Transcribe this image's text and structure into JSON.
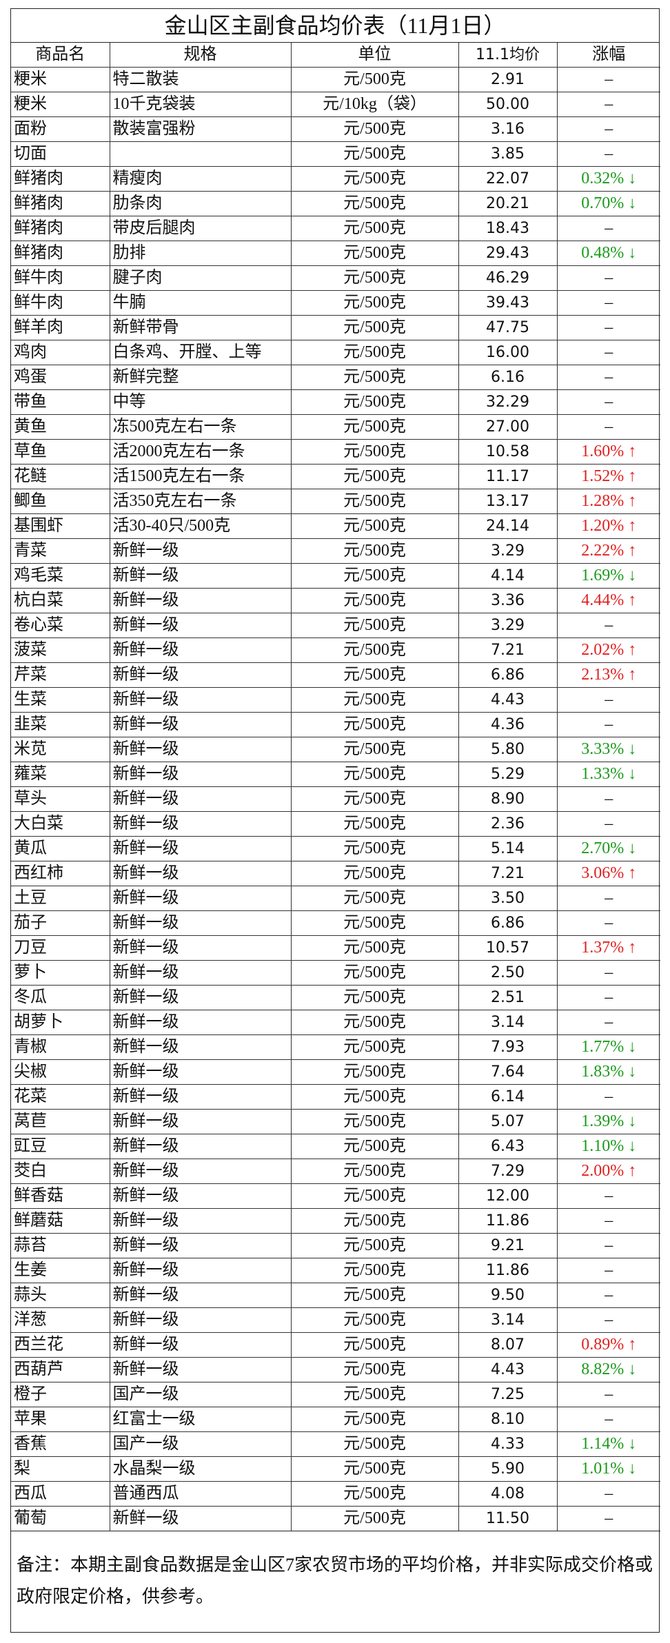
{
  "title": "金山区主副食品均价表（11月1日）",
  "table": {
    "header": [
      "商品名",
      "规格",
      "单位",
      "11.1均价",
      "涨幅"
    ],
    "rows": [
      [
        "粳米",
        "特二散装",
        "元/500克",
        "2.91",
        "–"
      ],
      [
        "粳米",
        "10千克袋装",
        "元/10kg（袋）",
        "50.00",
        "–"
      ],
      [
        "面粉",
        "散装富强粉",
        "元/500克",
        "3.16",
        "–"
      ],
      [
        "切面",
        null,
        "元/500克",
        "3.85",
        "–"
      ],
      [
        "鲜猪肉",
        "精瘦肉",
        "元/500克",
        "22.07",
        "0.32% ↓"
      ],
      [
        "鲜猪肉",
        "肋条肉",
        "元/500克",
        "20.21",
        "0.70% ↓"
      ],
      [
        "鲜猪肉",
        "带皮后腿肉",
        "元/500克",
        "18.43",
        "–"
      ],
      [
        "鲜猪肉",
        "肋排",
        "元/500克",
        "29.43",
        "0.48% ↓"
      ],
      [
        "鲜牛肉",
        "腱子肉",
        "元/500克",
        "46.29",
        "–"
      ],
      [
        "鲜牛肉",
        "牛腩",
        "元/500克",
        "39.43",
        "–"
      ],
      [
        "鲜羊肉",
        "新鲜带骨",
        "元/500克",
        "47.75",
        "–"
      ],
      [
        "鸡肉",
        "白条鸡、开膛、上等",
        "元/500克",
        "16.00",
        "–"
      ],
      [
        "鸡蛋",
        "新鲜完整",
        "元/500克",
        "6.16",
        "–"
      ],
      [
        "带鱼",
        "中等",
        "元/500克",
        "32.29",
        "–"
      ],
      [
        "黄鱼",
        "冻500克左右一条",
        "元/500克",
        "27.00",
        "–"
      ],
      [
        "草鱼",
        "活2000克左右一条",
        "元/500克",
        "10.58",
        "1.60% ↑"
      ],
      [
        "花鲢",
        "活1500克左右一条",
        "元/500克",
        "11.17",
        "1.52% ↑"
      ],
      [
        "鲫鱼",
        "活350克左右一条",
        "元/500克",
        "13.17",
        "1.28% ↑"
      ],
      [
        "基围虾",
        "活30-40只/500克",
        "元/500克",
        "24.14",
        "1.20% ↑"
      ],
      [
        "青菜",
        "新鲜一级",
        "元/500克",
        "3.29",
        "2.22% ↑"
      ],
      [
        "鸡毛菜",
        "新鲜一级",
        "元/500克",
        "4.14",
        "1.69% ↓"
      ],
      [
        "杭白菜",
        "新鲜一级",
        "元/500克",
        "3.36",
        "4.44% ↑"
      ],
      [
        "卷心菜",
        "新鲜一级",
        "元/500克",
        "3.29",
        "–"
      ],
      [
        "菠菜",
        "新鲜一级",
        "元/500克",
        "7.21",
        "2.02% ↑"
      ],
      [
        "芹菜",
        "新鲜一级",
        "元/500克",
        "6.86",
        "2.13% ↑"
      ],
      [
        "生菜",
        "新鲜一级",
        "元/500克",
        "4.43",
        "–"
      ],
      [
        "韭菜",
        "新鲜一级",
        "元/500克",
        "4.36",
        "–"
      ],
      [
        "米苋",
        "新鲜一级",
        "元/500克",
        "5.80",
        "3.33% ↓"
      ],
      [
        "蕹菜",
        "新鲜一级",
        "元/500克",
        "5.29",
        "1.33% ↓"
      ],
      [
        "草头",
        "新鲜一级",
        "元/500克",
        "8.90",
        "–"
      ],
      [
        "大白菜",
        "新鲜一级",
        "元/500克",
        "2.36",
        "–"
      ],
      [
        "黄瓜",
        "新鲜一级",
        "元/500克",
        "5.14",
        "2.70% ↓"
      ],
      [
        "西红柿",
        "新鲜一级",
        "元/500克",
        "7.21",
        "3.06% ↑"
      ],
      [
        "土豆",
        "新鲜一级",
        "元/500克",
        "3.50",
        "–"
      ],
      [
        "茄子",
        "新鲜一级",
        "元/500克",
        "6.86",
        "–"
      ],
      [
        "刀豆",
        "新鲜一级",
        "元/500克",
        "10.57",
        "1.37% ↑"
      ],
      [
        "萝卜",
        "新鲜一级",
        "元/500克",
        "2.50",
        "–"
      ],
      [
        "冬瓜",
        "新鲜一级",
        "元/500克",
        "2.51",
        "–"
      ],
      [
        "胡萝卜",
        "新鲜一级",
        "元/500克",
        "3.14",
        "–"
      ],
      [
        "青椒",
        "新鲜一级",
        "元/500克",
        "7.93",
        "1.77% ↓"
      ],
      [
        "尖椒",
        "新鲜一级",
        "元/500克",
        "7.64",
        "1.83% ↓"
      ],
      [
        "花菜",
        "新鲜一级",
        "元/500克",
        "6.14",
        "–"
      ],
      [
        "莴苣",
        "新鲜一级",
        "元/500克",
        "5.07",
        "1.39% ↓"
      ],
      [
        "豇豆",
        "新鲜一级",
        "元/500克",
        "6.43",
        "1.10% ↓"
      ],
      [
        "茭白",
        "新鲜一级",
        "元/500克",
        "7.29",
        "2.00% ↑"
      ],
      [
        "鲜香菇",
        "新鲜一级",
        "元/500克",
        "12.00",
        "–"
      ],
      [
        "鲜蘑菇",
        "新鲜一级",
        "元/500克",
        "11.86",
        "–"
      ],
      [
        "蒜苔",
        "新鲜一级",
        "元/500克",
        "9.21",
        "–"
      ],
      [
        "生姜",
        "新鲜一级",
        "元/500克",
        "11.86",
        "–"
      ],
      [
        "蒜头",
        "新鲜一级",
        "元/500克",
        "9.50",
        "–"
      ],
      [
        "洋葱",
        "新鲜一级",
        "元/500克",
        "3.14",
        "–"
      ],
      [
        "西兰花",
        "新鲜一级",
        "元/500克",
        "8.07",
        "0.89% ↑"
      ],
      [
        "西葫芦",
        "新鲜一级",
        "元/500克",
        "4.43",
        "8.82% ↓"
      ],
      [
        "橙子",
        "国产一级",
        "元/500克",
        "7.25",
        "–"
      ],
      [
        "苹果",
        "红富士一级",
        "元/500克",
        "8.10",
        "–"
      ],
      [
        "香蕉",
        "国产一级",
        "元/500克",
        "4.33",
        "1.14% ↓"
      ],
      [
        "梨",
        "水晶梨一级",
        "元/500克",
        "5.90",
        "1.01% ↓"
      ],
      [
        "西瓜",
        "普通西瓜",
        "元/500克",
        "4.08",
        "–"
      ],
      [
        "葡萄",
        "新鲜一级",
        "元/500克",
        "11.50",
        "–"
      ]
    ]
  },
  "note": "备注：本期主副食品数据是金山区7家农贸市场的平均价格，并非实际成交价格或政府限定价格，供参考。"
}
